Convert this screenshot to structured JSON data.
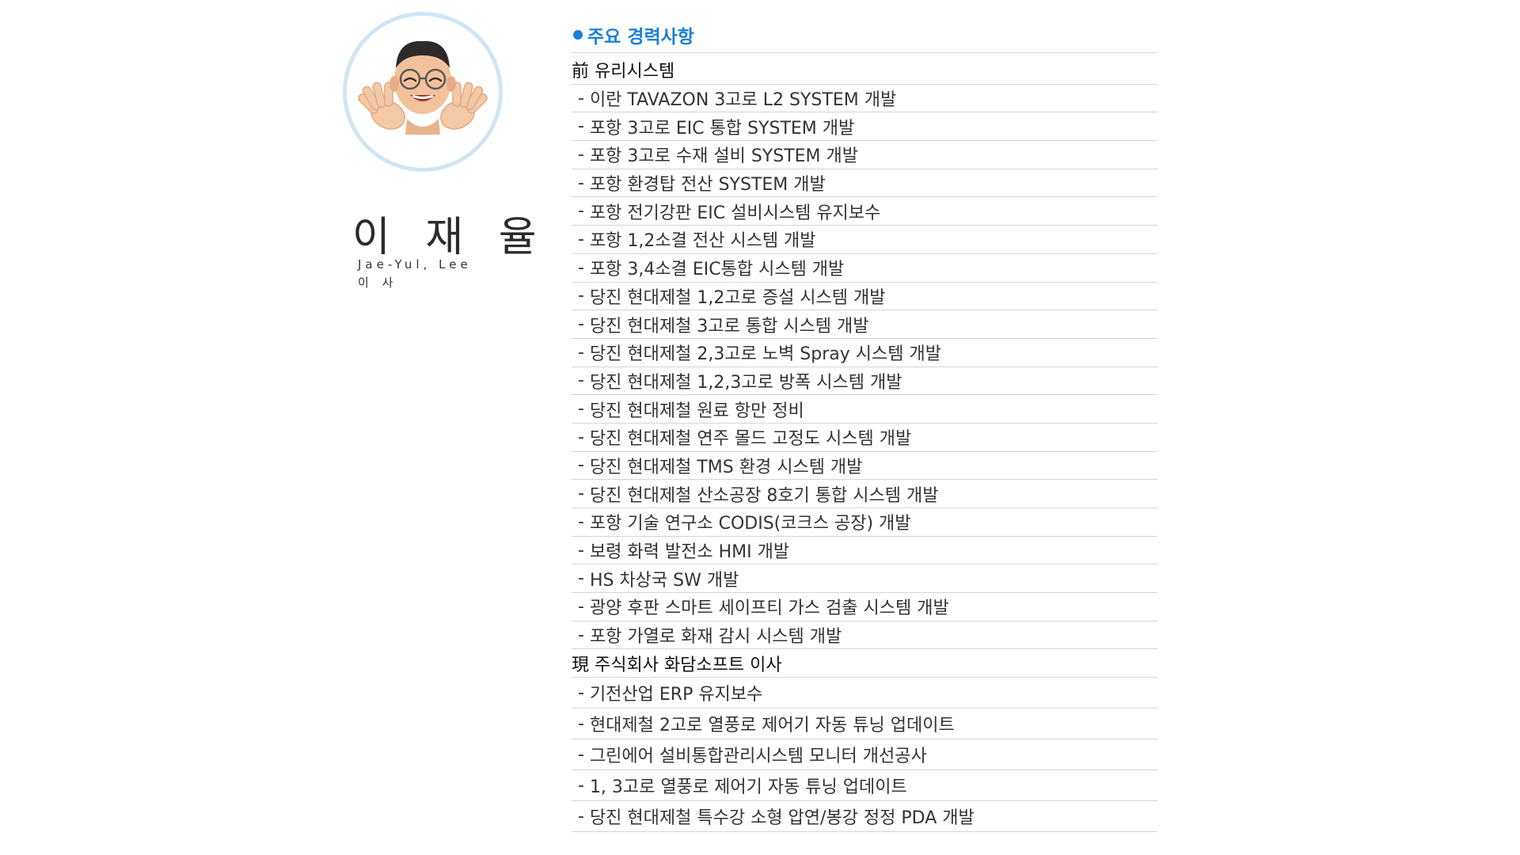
{
  "profile": {
    "name_ko": "이 재 율",
    "name_en": "Jae-Yul, Lee",
    "title": "이 사",
    "avatar": "memoji-avatar-waving-hands"
  },
  "career": {
    "heading": "주요 경력사항",
    "accent_color": "#1a7fd6",
    "previous": {
      "company": "前 유리시스템",
      "items": [
        "이란 TAVAZON 3고로 L2 SYSTEM 개발",
        "포항 3고로 EIC 통합 SYSTEM 개발",
        "포항 3고로 수재 설비 SYSTEM 개발",
        "포항 환경탑 전산 SYSTEM 개발",
        "포항 전기강판 EIC 설비시스템 유지보수",
        "포항 1,2소결 전산 시스템 개발",
        "포항 3,4소결 EIC통합 시스템 개발",
        "당진 현대제철 1,2고로 증설 시스템 개발",
        "당진 현대제철 3고로 통합 시스템 개발",
        "당진 현대제철 2,3고로 노벽 Spray 시스템 개발",
        "당진 현대제철 1,2,3고로 방폭 시스템 개발",
        "당진 현대제철 원료 항만 정비",
        "당진 현대제철 연주 몰드 고정도 시스템 개발",
        "당진 현대제철 TMS 환경 시스템 개발",
        "당진 현대제철 산소공장 8호기 통합 시스템 개발",
        "포항 기술 연구소 CODIS(코크스 공장) 개발",
        "보령 화력 발전소 HMI 개발",
        "HS 차상국 SW 개발",
        "광양 후판 스마트 세이프티 가스 검출 시스템 개발",
        "포항 가열로 화재 감시 시스템 개발"
      ]
    },
    "current": {
      "company": "現 주식회사 화담소프트 이사",
      "items": [
        "기전산업 ERP 유지보수",
        "현대제철 2고로 열풍로 제어기 자동 튜닝 업데이트",
        "그린에어 설비통합관리시스템 모니터 개선공사",
        "1, 3고로 열풍로 제어기 자동 튜닝 업데이트",
        "당진 현대제철 특수강 소형 압연/봉강 정정 PDA 개발"
      ]
    }
  }
}
